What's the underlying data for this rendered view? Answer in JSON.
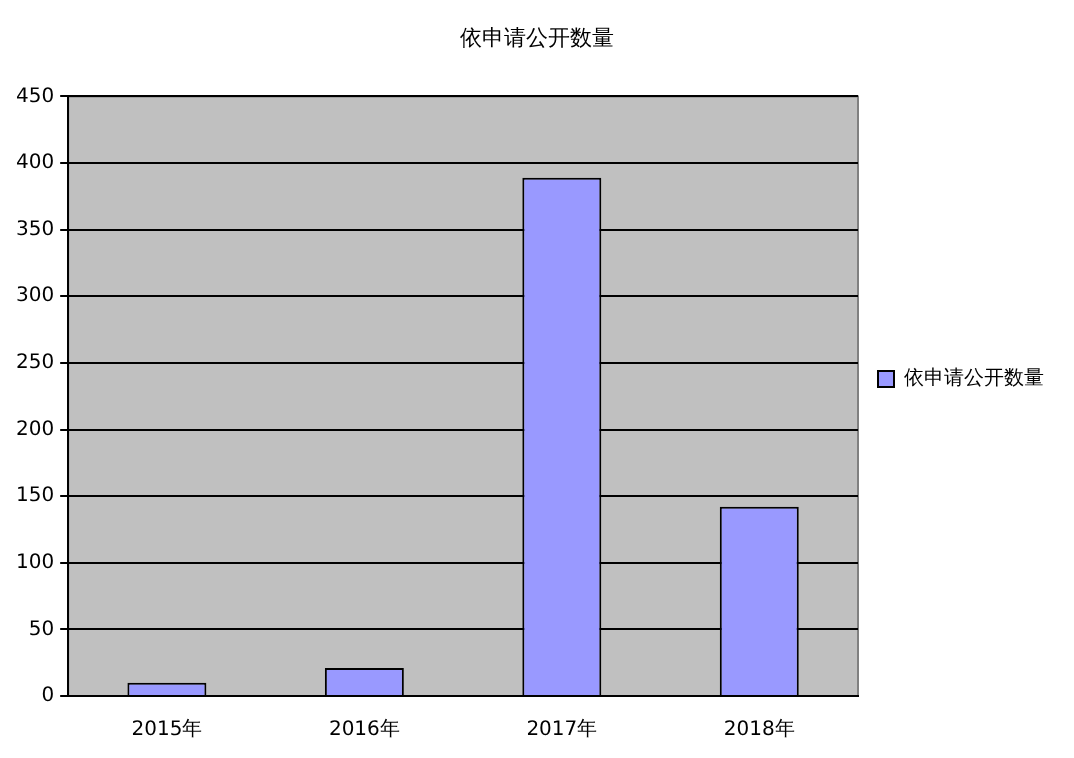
{
  "chart_data": {
    "type": "bar",
    "title": "依申请公开数量",
    "categories": [
      "2015年",
      "2016年",
      "2017年",
      "2018年"
    ],
    "series": [
      {
        "name": "依申请公开数量",
        "color": "#9999ff",
        "values": [
          10,
          21,
          389,
          142
        ]
      }
    ],
    "ylim": [
      0,
      450
    ],
    "yticks": [
      0,
      50,
      100,
      150,
      200,
      250,
      300,
      350,
      400,
      450
    ],
    "grid": "y",
    "legend": "right"
  }
}
